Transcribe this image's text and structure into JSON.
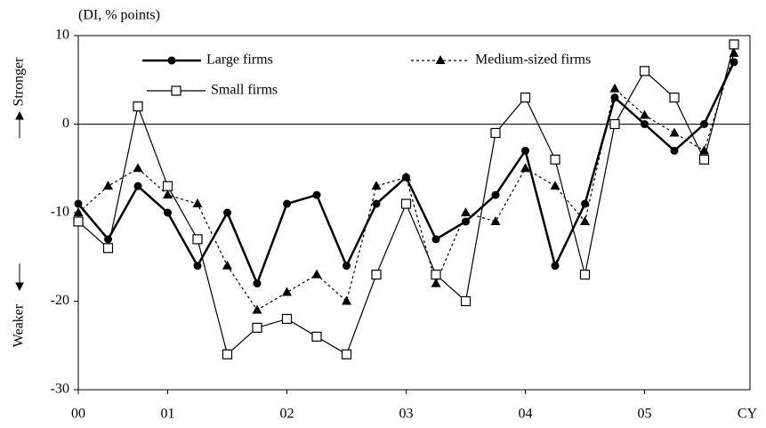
{
  "chart_data": {
    "type": "line",
    "y_unit_label": "(DI, % points)",
    "y_label_up": "Stronger",
    "y_label_down": "Weaker",
    "x_axis_label": "CY",
    "categories": [
      "00",
      null,
      null,
      "01",
      null,
      null,
      null,
      "02",
      null,
      null,
      null,
      "03",
      null,
      null,
      null,
      "04",
      null,
      null,
      null,
      "05",
      null,
      null,
      null
    ],
    "series": [
      {
        "name": "Large firms",
        "color": "#000000",
        "style": "thick",
        "marker": "circle",
        "values": [
          -9,
          -13,
          -7,
          -10,
          -16,
          -10,
          -18,
          -9,
          -8,
          -16,
          -9,
          -6,
          -13,
          -11,
          -8,
          -3,
          -16,
          -9,
          3,
          0,
          -3,
          0,
          7
        ]
      },
      {
        "name": "Medium-sized firms",
        "color": "#000000",
        "style": "dotted",
        "marker": "triangle",
        "values": [
          -10,
          -7,
          -5,
          -8,
          -9,
          -16,
          -21,
          -19,
          -17,
          -20,
          -7,
          -6,
          -18,
          -10,
          -11,
          -5,
          -7,
          -11,
          4,
          1,
          -1,
          -3,
          8
        ]
      },
      {
        "name": "Small firms",
        "color": "#000000",
        "style": "thin",
        "marker": "square",
        "values": [
          -11,
          -14,
          2,
          -7,
          -13,
          -26,
          -23,
          -22,
          -24,
          -26,
          -17,
          -9,
          -17,
          -20,
          -1,
          3,
          -4,
          -17,
          0,
          6,
          3,
          -4,
          9
        ]
      }
    ],
    "ylim": [
      -30,
      10
    ],
    "yticks": [
      -30,
      -20,
      -10,
      0,
      10
    ]
  }
}
